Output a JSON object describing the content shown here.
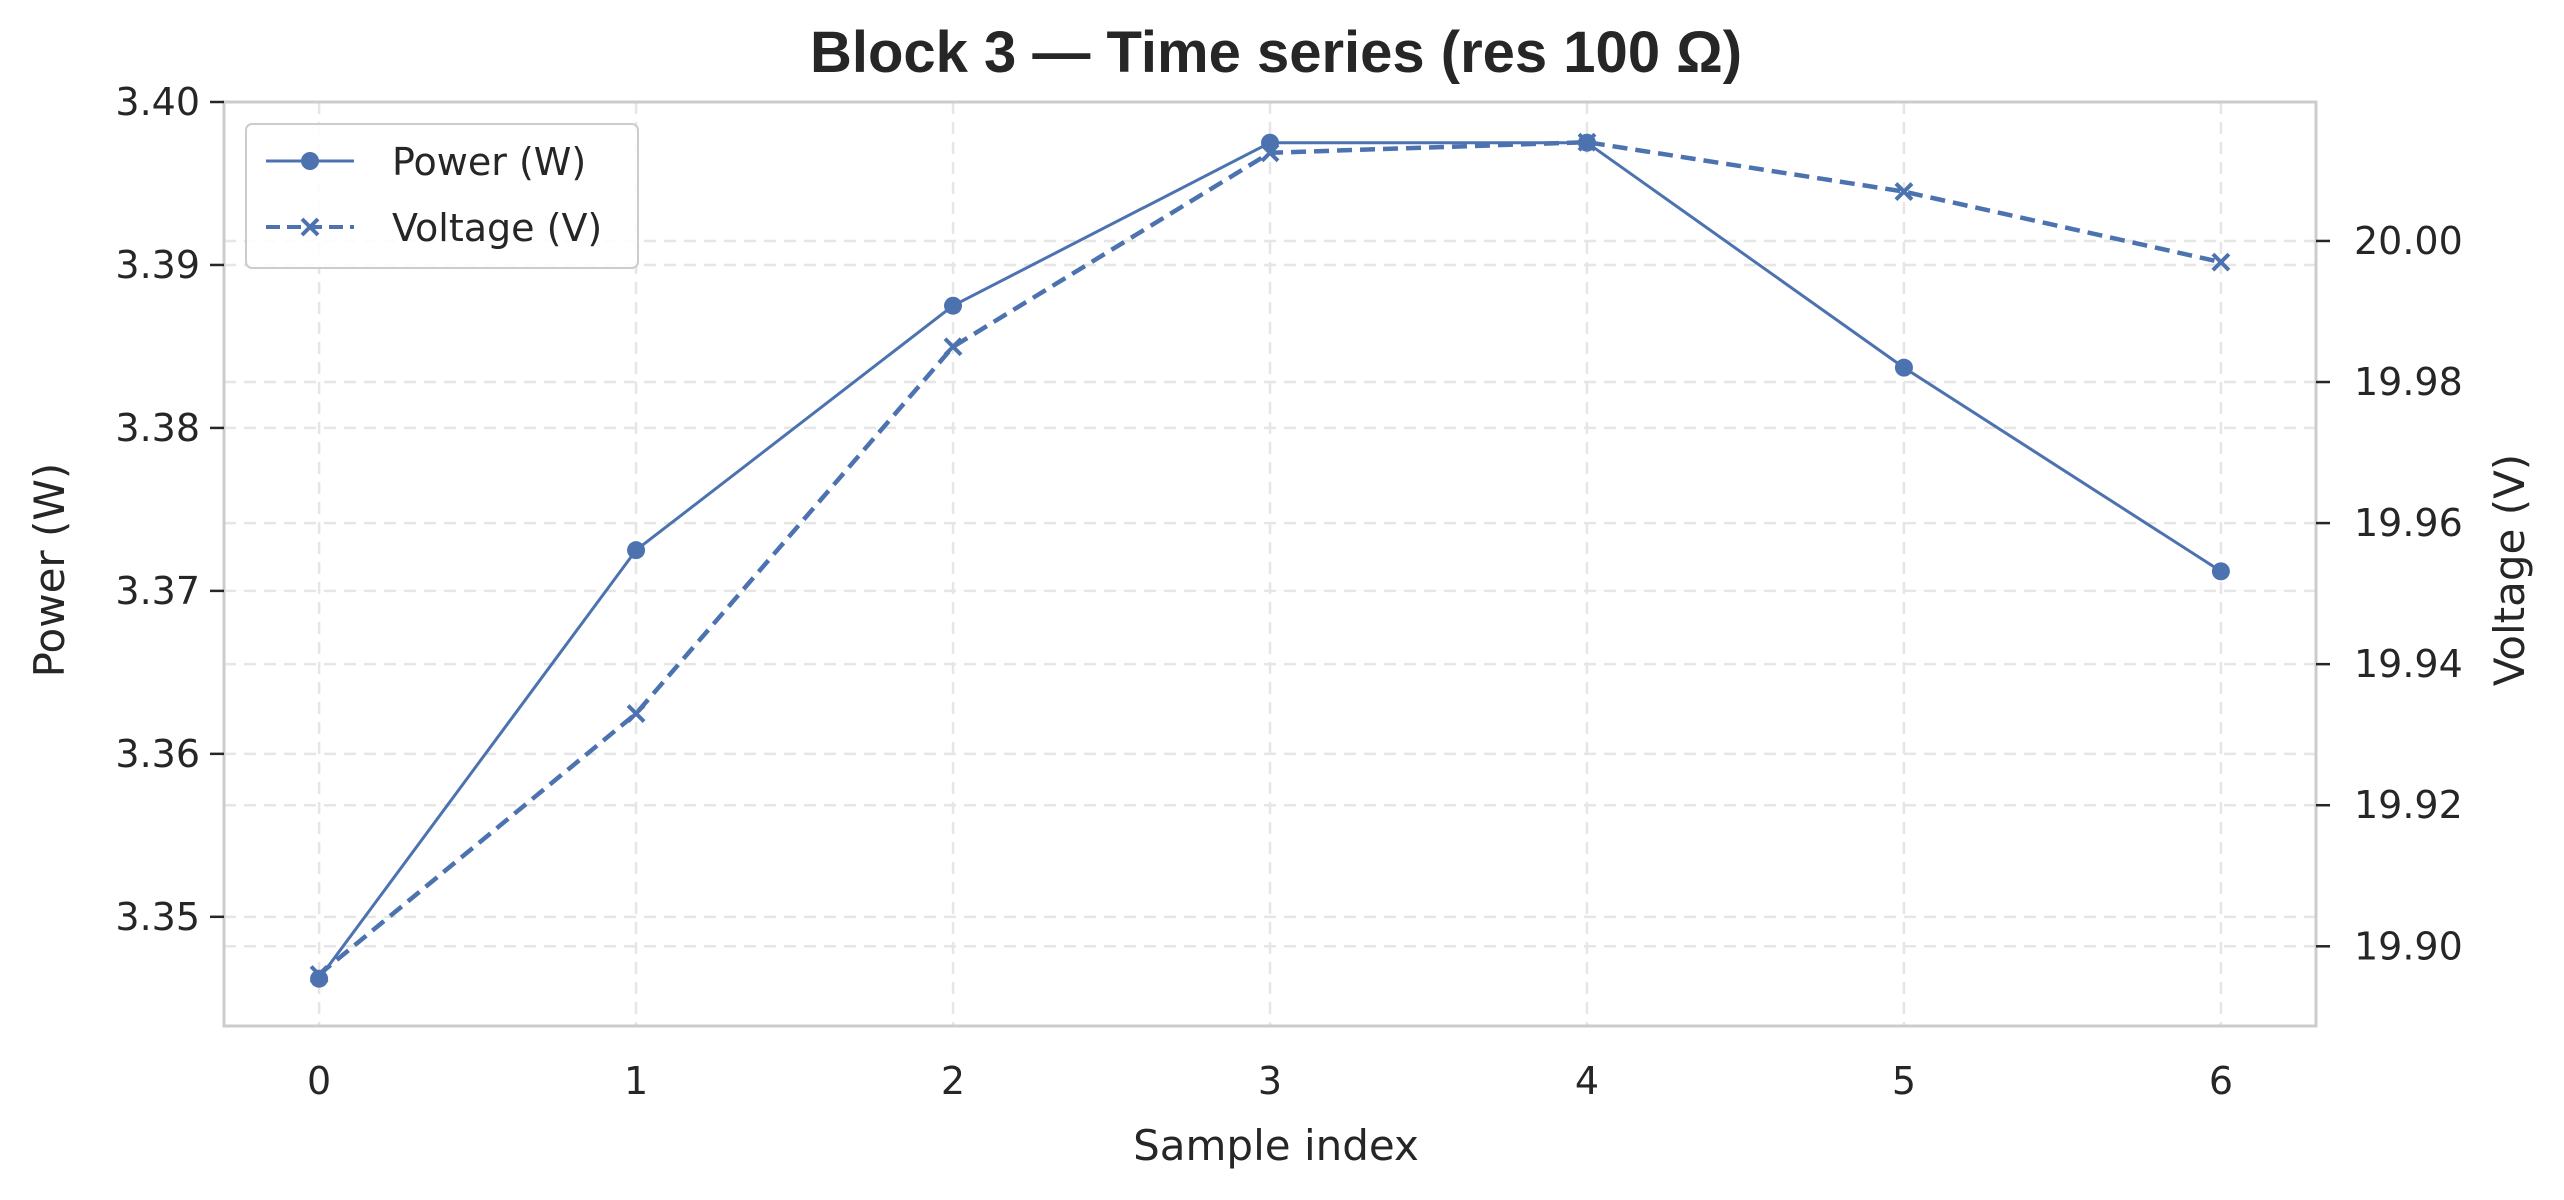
{
  "chart_data": {
    "type": "line",
    "title": "Block 3 — Time series (res 100 Ω)",
    "xlabel": "Sample index",
    "ylabel": "Power (W)",
    "y2label": "Voltage (V)",
    "x": [
      0,
      1,
      2,
      3,
      4,
      5,
      6
    ],
    "xlim": [
      -0.3,
      6.3
    ],
    "ylim": [
      3.3433,
      3.4
    ],
    "y2lim": [
      19.8887,
      20.0197
    ],
    "xticks": [
      "0",
      "1",
      "2",
      "3",
      "4",
      "5",
      "6"
    ],
    "yticks": [
      "3.35",
      "3.36",
      "3.37",
      "3.38",
      "3.39",
      "3.40"
    ],
    "y2ticks": [
      "19.90",
      "19.92",
      "19.94",
      "19.96",
      "19.98",
      "20.00"
    ],
    "grid": true,
    "legend_position": "top-left",
    "series": [
      {
        "name": "Power (W)",
        "axis": "left",
        "marker": "circle",
        "linestyle": "solid",
        "color": "#4c72b0",
        "values": [
          3.3462,
          3.3725,
          3.3875,
          3.3975,
          3.3975,
          3.3837,
          3.3712
        ]
      },
      {
        "name": "Voltage (V)",
        "axis": "right",
        "marker": "x",
        "linestyle": "dashed",
        "color": "#4c72b0",
        "values": [
          19.896,
          19.933,
          19.985,
          20.0125,
          20.014,
          20.007,
          19.997
        ]
      }
    ]
  }
}
